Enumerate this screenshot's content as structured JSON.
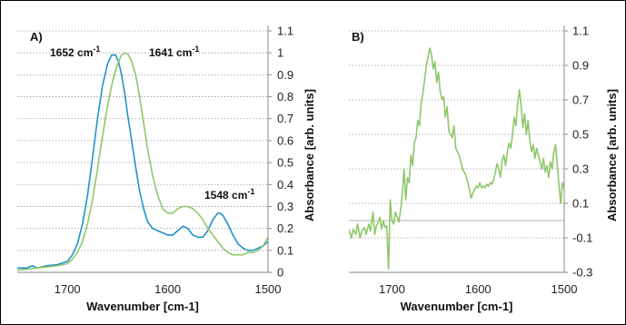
{
  "colors": {
    "blue": "#1f93c9",
    "green": "#8fc76b"
  },
  "chart_data": [
    {
      "panel_label": "A)",
      "type": "line",
      "xlabel": "Wavenumber [cm-1]",
      "ylabel": "Absorbance [arb. units]",
      "xlim": [
        1750,
        1500
      ],
      "ylim": [
        0,
        1.1
      ],
      "x_ticks": [
        1700,
        1600,
        1500
      ],
      "y_ticks": [
        0,
        0.1,
        0.2,
        0.3,
        0.4,
        0.5,
        0.6,
        0.7,
        0.8,
        0.9,
        1,
        1.1
      ],
      "y_axis_side": "right",
      "grid": "horizontal dotted",
      "annotations": [
        {
          "text": "1652 cm",
          "sup": "-1",
          "x": 1652,
          "y": 1.03
        },
        {
          "text": "1641 cm",
          "sup": "-1",
          "x": 1641,
          "y": 1.03
        },
        {
          "text": "1548 cm",
          "sup": "-1",
          "x": 1548,
          "y": 0.35
        }
      ],
      "series": [
        {
          "color": "#1f93c9",
          "x": [
            1750,
            1740,
            1735,
            1730,
            1720,
            1710,
            1700,
            1695,
            1690,
            1685,
            1680,
            1675,
            1670,
            1665,
            1660,
            1656,
            1652,
            1649,
            1646,
            1643,
            1640,
            1636,
            1632,
            1628,
            1624,
            1620,
            1615,
            1610,
            1605,
            1600,
            1595,
            1590,
            1585,
            1580,
            1575,
            1570,
            1565,
            1560,
            1555,
            1550,
            1548,
            1545,
            1540,
            1535,
            1530,
            1525,
            1520,
            1515,
            1510,
            1505,
            1500
          ],
          "y": [
            0.02,
            0.02,
            0.03,
            0.02,
            0.03,
            0.035,
            0.05,
            0.08,
            0.13,
            0.22,
            0.35,
            0.52,
            0.7,
            0.85,
            0.95,
            0.99,
            0.99,
            0.96,
            0.9,
            0.82,
            0.72,
            0.6,
            0.48,
            0.37,
            0.29,
            0.23,
            0.2,
            0.19,
            0.18,
            0.17,
            0.17,
            0.19,
            0.21,
            0.2,
            0.17,
            0.16,
            0.16,
            0.19,
            0.24,
            0.27,
            0.27,
            0.26,
            0.22,
            0.17,
            0.13,
            0.11,
            0.1,
            0.1,
            0.11,
            0.12,
            0.14
          ]
        },
        {
          "color": "#8fc76b",
          "x": [
            1750,
            1740,
            1730,
            1720,
            1710,
            1700,
            1695,
            1690,
            1685,
            1680,
            1675,
            1670,
            1665,
            1660,
            1655,
            1650,
            1646,
            1642,
            1639,
            1636,
            1632,
            1628,
            1624,
            1620,
            1615,
            1610,
            1605,
            1600,
            1595,
            1590,
            1585,
            1580,
            1575,
            1570,
            1565,
            1560,
            1555,
            1550,
            1545,
            1540,
            1535,
            1530,
            1525,
            1520,
            1515,
            1510,
            1505,
            1500
          ],
          "y": [
            0.01,
            0.015,
            0.02,
            0.025,
            0.03,
            0.04,
            0.06,
            0.09,
            0.14,
            0.22,
            0.33,
            0.47,
            0.62,
            0.76,
            0.87,
            0.95,
            0.99,
            1.0,
            0.99,
            0.96,
            0.9,
            0.8,
            0.68,
            0.56,
            0.44,
            0.35,
            0.29,
            0.27,
            0.27,
            0.29,
            0.3,
            0.3,
            0.29,
            0.27,
            0.24,
            0.2,
            0.17,
            0.14,
            0.11,
            0.09,
            0.08,
            0.08,
            0.08,
            0.09,
            0.09,
            0.1,
            0.12,
            0.16
          ]
        }
      ]
    },
    {
      "panel_label": "B)",
      "type": "line",
      "xlabel": "Wavenumber [cm-1]",
      "ylabel": "Absorbance [arb. units]",
      "xlim": [
        1750,
        1500
      ],
      "ylim": [
        -0.3,
        1.1
      ],
      "x_ticks": [
        1700,
        1600,
        1500
      ],
      "y_ticks": [
        -0.3,
        -0.1,
        0.1,
        0.3,
        0.5,
        0.7,
        0.9,
        1.1
      ],
      "y_axis_side": "right",
      "grid": "horizontal dotted",
      "zero_line": true,
      "series": [
        {
          "color": "#8fc76b",
          "x": [
            1750,
            1747,
            1745,
            1742,
            1740,
            1737,
            1735,
            1732,
            1730,
            1727,
            1725,
            1722,
            1720,
            1718,
            1716,
            1714,
            1712,
            1710,
            1708,
            1706,
            1704,
            1702,
            1700,
            1698,
            1696,
            1694,
            1692,
            1690,
            1688,
            1686,
            1684,
            1682,
            1680,
            1678,
            1676,
            1674,
            1672,
            1670,
            1668,
            1666,
            1664,
            1662,
            1660,
            1658,
            1656,
            1654,
            1652,
            1650,
            1648,
            1646,
            1644,
            1642,
            1640,
            1638,
            1636,
            1634,
            1632,
            1630,
            1628,
            1626,
            1624,
            1622,
            1620,
            1618,
            1616,
            1614,
            1612,
            1610,
            1608,
            1606,
            1604,
            1602,
            1600,
            1598,
            1596,
            1594,
            1592,
            1590,
            1588,
            1586,
            1584,
            1582,
            1580,
            1578,
            1576,
            1574,
            1572,
            1570,
            1568,
            1566,
            1564,
            1562,
            1560,
            1558,
            1556,
            1554,
            1552,
            1550,
            1548,
            1546,
            1544,
            1542,
            1540,
            1538,
            1536,
            1534,
            1532,
            1530,
            1528,
            1526,
            1524,
            1522,
            1520,
            1518,
            1516,
            1514,
            1512,
            1510,
            1508,
            1506,
            1504,
            1502,
            1500
          ],
          "y": [
            -0.05,
            -0.1,
            -0.05,
            -0.08,
            -0.02,
            -0.1,
            -0.06,
            -0.04,
            -0.08,
            -0.02,
            -0.06,
            0.05,
            -0.08,
            -0.03,
            -0.01,
            0.02,
            -0.05,
            0.0,
            -0.04,
            -0.03,
            -0.28,
            0.12,
            0.0,
            -0.02,
            0.05,
            0.02,
            -0.01,
            0.06,
            0.15,
            0.3,
            0.12,
            0.25,
            0.22,
            0.38,
            0.32,
            0.45,
            0.48,
            0.58,
            0.55,
            0.68,
            0.74,
            0.82,
            0.9,
            0.95,
            1.0,
            0.96,
            0.88,
            0.92,
            0.8,
            0.86,
            0.75,
            0.7,
            0.72,
            0.6,
            0.66,
            0.52,
            0.5,
            0.48,
            0.55,
            0.42,
            0.4,
            0.38,
            0.34,
            0.3,
            0.28,
            0.26,
            0.22,
            0.18,
            0.13,
            0.16,
            0.18,
            0.2,
            0.19,
            0.22,
            0.19,
            0.2,
            0.19,
            0.21,
            0.2,
            0.22,
            0.21,
            0.24,
            0.28,
            0.33,
            0.3,
            0.25,
            0.35,
            0.38,
            0.32,
            0.4,
            0.45,
            0.42,
            0.5,
            0.6,
            0.55,
            0.68,
            0.76,
            0.66,
            0.54,
            0.62,
            0.5,
            0.58,
            0.47,
            0.4,
            0.44,
            0.36,
            0.42,
            0.38,
            0.34,
            0.3,
            0.36,
            0.28,
            0.32,
            0.25,
            0.34,
            0.3,
            0.4,
            0.44,
            0.32,
            0.2,
            0.1,
            0.22,
            0.18
          ]
        }
      ]
    }
  ]
}
